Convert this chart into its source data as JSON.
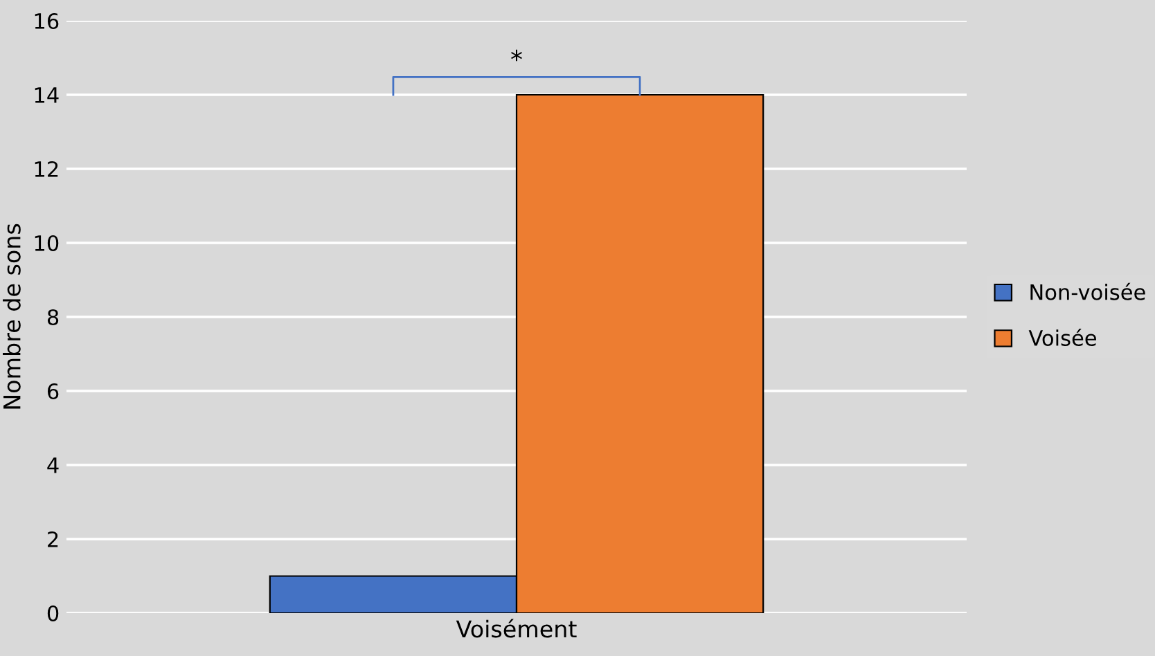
{
  "chart_data": {
    "type": "bar",
    "ylabel": "Nombre de sons",
    "categories": [
      "Voisément"
    ],
    "series": [
      {
        "name": "Non-voisée",
        "color": "#4472c4",
        "values": [
          1
        ]
      },
      {
        "name": "Voisée",
        "color": "#ed7d31",
        "values": [
          14
        ]
      }
    ],
    "ylim": [
      0,
      16
    ],
    "yticks": [
      0,
      2,
      4,
      6,
      8,
      10,
      12,
      14,
      16
    ],
    "grid": "y",
    "legend": "right",
    "annotations": [
      "*"
    ]
  }
}
